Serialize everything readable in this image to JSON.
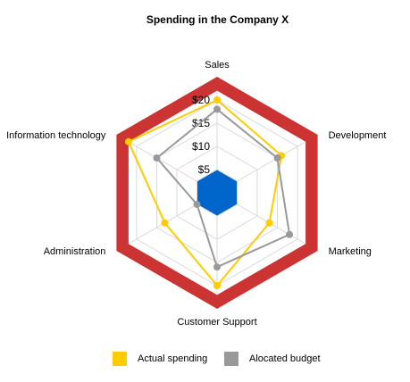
{
  "chart_data": {
    "type": "radar",
    "title": "Spending in the Company X",
    "categories": [
      "Sales",
      "Development",
      "Marketing",
      "Customer Support",
      "Administration",
      "Information technology"
    ],
    "ticks": [
      "$5",
      "$10",
      "$15",
      "$20"
    ],
    "range": [
      0,
      25
    ],
    "grid": true,
    "legend_position": "bottom",
    "series": [
      {
        "name": "Actual spending",
        "values": [
          20,
          16,
          13,
          20,
          13,
          22
        ],
        "color": "#FFCC00"
      },
      {
        "name": "Alocated budget",
        "values": [
          18,
          15,
          18,
          16,
          5,
          15
        ],
        "color": "#999999"
      }
    ],
    "bands": [
      {
        "range": [
          0,
          5
        ],
        "color": "#0066CC"
      },
      {
        "range": [
          22,
          25
        ],
        "color": "#CC3333"
      }
    ]
  }
}
